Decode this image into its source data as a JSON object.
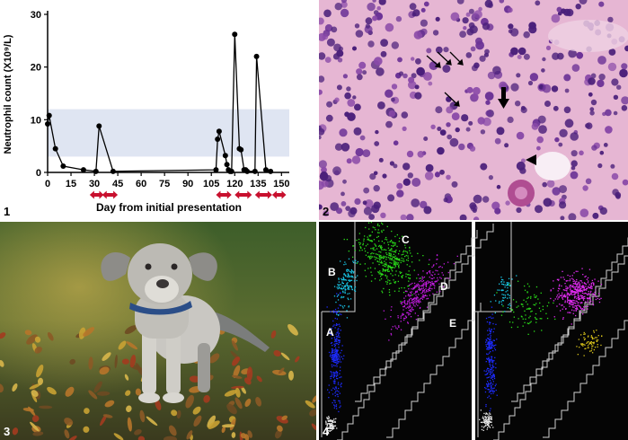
{
  "panels": {
    "p1": {
      "label": "1"
    },
    "p2": {
      "label": "2"
    },
    "p3": {
      "label": "3"
    },
    "p4": {
      "label": "4"
    }
  },
  "chart_data": {
    "type": "line",
    "title": "",
    "xlabel": "Day from initial presentation",
    "ylabel": "Neutrophil count (X10⁹/L)",
    "x_ticks": [
      0,
      15,
      30,
      45,
      60,
      75,
      90,
      105,
      120,
      135,
      150
    ],
    "y_ticks": [
      0,
      10,
      20,
      30
    ],
    "xlim": [
      0,
      155
    ],
    "ylim": [
      0,
      30
    ],
    "reference_range": [
      3,
      12
    ],
    "reference_range_color": "#dfe5f2",
    "treatment_arrow_color": "#c8102e",
    "treatment_periods": [
      [
        27,
        36
      ],
      [
        35,
        45
      ],
      [
        108,
        118
      ],
      [
        120,
        131
      ],
      [
        133,
        144
      ],
      [
        144,
        153
      ]
    ],
    "series": [
      {
        "points": [
          [
            0,
            9.2
          ],
          [
            1,
            10.8
          ],
          [
            5,
            4.5
          ],
          [
            10,
            1.2
          ],
          [
            23,
            0.5
          ],
          [
            31,
            0.2
          ],
          [
            33,
            8.8
          ],
          [
            42,
            0.2
          ],
          [
            108,
            0.5
          ],
          [
            109,
            6.3
          ],
          [
            110,
            7.8
          ],
          [
            114,
            3.2
          ],
          [
            115,
            1.5
          ],
          [
            116,
            0.5
          ],
          [
            117,
            0.2
          ],
          [
            118,
            0.2
          ],
          [
            120,
            26.2
          ],
          [
            123,
            4.5
          ],
          [
            124,
            4.3
          ],
          [
            126,
            0.5
          ],
          [
            127,
            0.5
          ],
          [
            128,
            0.2
          ],
          [
            133,
            0.2
          ],
          [
            134,
            22.0
          ],
          [
            140,
            0.5
          ],
          [
            143,
            0.2
          ]
        ]
      }
    ]
  },
  "flow": {
    "left_labels": [
      "A",
      "B",
      "C",
      "D",
      "E"
    ]
  }
}
